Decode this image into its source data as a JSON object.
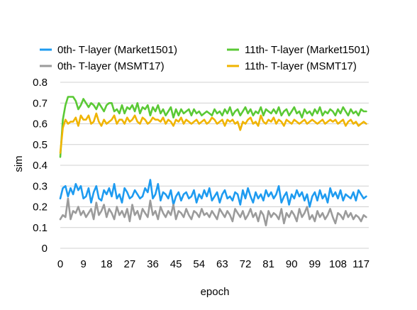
{
  "chart_data": {
    "type": "line",
    "title": "",
    "xlabel": "epoch",
    "ylabel": "sim",
    "ylim": [
      0,
      0.8
    ],
    "yticks": [
      "0",
      "0.1",
      "0.2",
      "0.3",
      "0.4",
      "0.5",
      "0.6",
      "0.7",
      "0.8"
    ],
    "xlim": [
      0,
      120
    ],
    "xticks": [
      "0",
      "9",
      "18",
      "27",
      "36",
      "45",
      "54",
      "63",
      "72",
      "81",
      "90",
      "99",
      "108",
      "117"
    ],
    "grid": "horizontal",
    "legend_position": "top",
    "x": [
      0,
      1,
      2,
      3,
      4,
      5,
      6,
      7,
      8,
      9,
      10,
      11,
      12,
      13,
      14,
      15,
      16,
      17,
      18,
      19,
      20,
      21,
      22,
      23,
      24,
      25,
      26,
      27,
      28,
      29,
      30,
      31,
      32,
      33,
      34,
      35,
      36,
      37,
      38,
      39,
      40,
      41,
      42,
      43,
      44,
      45,
      46,
      47,
      48,
      49,
      50,
      51,
      52,
      53,
      54,
      55,
      56,
      57,
      58,
      59,
      60,
      61,
      62,
      63,
      64,
      65,
      66,
      67,
      68,
      69,
      70,
      71,
      72,
      73,
      74,
      75,
      76,
      77,
      78,
      79,
      80,
      81,
      82,
      83,
      84,
      85,
      86,
      87,
      88,
      89,
      90,
      91,
      92,
      93,
      94,
      95,
      96,
      97,
      98,
      99,
      100,
      101,
      102,
      103,
      104,
      105,
      106,
      107,
      108,
      109,
      110,
      111,
      112,
      113,
      114,
      115,
      116,
      117,
      118,
      119
    ],
    "series": [
      {
        "name": "0th- T-layer (Market1501)",
        "color": "#1E9BF0",
        "values": [
          0.24,
          0.29,
          0.3,
          0.25,
          0.29,
          0.26,
          0.31,
          0.28,
          0.3,
          0.24,
          0.25,
          0.29,
          0.22,
          0.27,
          0.3,
          0.24,
          0.23,
          0.28,
          0.26,
          0.29,
          0.25,
          0.31,
          0.24,
          0.26,
          0.22,
          0.29,
          0.27,
          0.24,
          0.25,
          0.28,
          0.26,
          0.24,
          0.25,
          0.29,
          0.27,
          0.33,
          0.24,
          0.26,
          0.31,
          0.23,
          0.27,
          0.26,
          0.24,
          0.28,
          0.21,
          0.25,
          0.27,
          0.23,
          0.26,
          0.27,
          0.24,
          0.25,
          0.28,
          0.22,
          0.26,
          0.24,
          0.28,
          0.25,
          0.29,
          0.23,
          0.25,
          0.27,
          0.22,
          0.26,
          0.28,
          0.24,
          0.25,
          0.23,
          0.27,
          0.26,
          0.21,
          0.28,
          0.24,
          0.29,
          0.25,
          0.22,
          0.27,
          0.24,
          0.26,
          0.23,
          0.28,
          0.25,
          0.27,
          0.24,
          0.26,
          0.3,
          0.22,
          0.25,
          0.27,
          0.21,
          0.26,
          0.24,
          0.28,
          0.25,
          0.27,
          0.23,
          0.26,
          0.2,
          0.25,
          0.27,
          0.23,
          0.28,
          0.24,
          0.26,
          0.22,
          0.29,
          0.25,
          0.27,
          0.24,
          0.28,
          0.23,
          0.26,
          0.25,
          0.24,
          0.27,
          0.23,
          0.28,
          0.26,
          0.24,
          0.25
        ]
      },
      {
        "name": "11th- T-layer (Market1501)",
        "color": "#5AC935",
        "values": [
          0.44,
          0.62,
          0.69,
          0.73,
          0.73,
          0.73,
          0.71,
          0.67,
          0.69,
          0.72,
          0.7,
          0.68,
          0.7,
          0.69,
          0.67,
          0.7,
          0.68,
          0.66,
          0.69,
          0.7,
          0.7,
          0.66,
          0.67,
          0.65,
          0.69,
          0.65,
          0.68,
          0.67,
          0.69,
          0.66,
          0.7,
          0.65,
          0.68,
          0.67,
          0.69,
          0.64,
          0.68,
          0.66,
          0.69,
          0.65,
          0.67,
          0.64,
          0.66,
          0.68,
          0.63,
          0.67,
          0.64,
          0.67,
          0.65,
          0.66,
          0.67,
          0.64,
          0.67,
          0.65,
          0.66,
          0.64,
          0.65,
          0.66,
          0.65,
          0.64,
          0.67,
          0.65,
          0.66,
          0.64,
          0.67,
          0.65,
          0.68,
          0.64,
          0.66,
          0.67,
          0.64,
          0.66,
          0.68,
          0.65,
          0.67,
          0.64,
          0.66,
          0.65,
          0.68,
          0.64,
          0.67,
          0.66,
          0.65,
          0.67,
          0.65,
          0.68,
          0.64,
          0.66,
          0.67,
          0.64,
          0.66,
          0.68,
          0.65,
          0.66,
          0.63,
          0.67,
          0.65,
          0.66,
          0.64,
          0.67,
          0.65,
          0.68,
          0.64,
          0.66,
          0.65,
          0.67,
          0.66,
          0.64,
          0.67,
          0.65,
          0.68,
          0.66,
          0.64,
          0.67,
          0.65,
          0.66,
          0.64,
          0.67,
          0.66,
          0.66
        ]
      },
      {
        "name": "0th- T-layer (MSMT17)",
        "color": "#9B9B9B",
        "values": [
          0.14,
          0.16,
          0.15,
          0.24,
          0.14,
          0.18,
          0.17,
          0.2,
          0.16,
          0.18,
          0.15,
          0.17,
          0.19,
          0.14,
          0.22,
          0.16,
          0.18,
          0.21,
          0.15,
          0.19,
          0.17,
          0.14,
          0.2,
          0.16,
          0.18,
          0.15,
          0.19,
          0.13,
          0.21,
          0.16,
          0.18,
          0.14,
          0.19,
          0.17,
          0.15,
          0.23,
          0.16,
          0.18,
          0.14,
          0.2,
          0.17,
          0.15,
          0.18,
          0.16,
          0.21,
          0.14,
          0.18,
          0.17,
          0.15,
          0.19,
          0.16,
          0.14,
          0.18,
          0.17,
          0.15,
          0.19,
          0.16,
          0.17,
          0.15,
          0.18,
          0.16,
          0.14,
          0.19,
          0.17,
          0.15,
          0.18,
          0.16,
          0.13,
          0.19,
          0.17,
          0.15,
          0.18,
          0.14,
          0.16,
          0.19,
          0.15,
          0.17,
          0.13,
          0.18,
          0.16,
          0.11,
          0.18,
          0.15,
          0.17,
          0.16,
          0.14,
          0.19,
          0.12,
          0.17,
          0.15,
          0.18,
          0.16,
          0.13,
          0.19,
          0.15,
          0.17,
          0.2,
          0.14,
          0.16,
          0.13,
          0.18,
          0.15,
          0.17,
          0.14,
          0.16,
          0.19,
          0.15,
          0.12,
          0.17,
          0.16,
          0.14,
          0.18,
          0.15,
          0.17,
          0.14,
          0.16,
          0.15,
          0.13,
          0.16,
          0.15
        ]
      },
      {
        "name": "11th- T-layer (MSMT17)",
        "color": "#F0B400",
        "values": [
          0.46,
          0.58,
          0.62,
          0.6,
          0.61,
          0.61,
          0.63,
          0.59,
          0.64,
          0.62,
          0.62,
          0.64,
          0.6,
          0.61,
          0.65,
          0.61,
          0.59,
          0.62,
          0.6,
          0.61,
          0.62,
          0.64,
          0.6,
          0.62,
          0.62,
          0.6,
          0.63,
          0.61,
          0.62,
          0.64,
          0.61,
          0.6,
          0.63,
          0.62,
          0.6,
          0.61,
          0.63,
          0.62,
          0.62,
          0.61,
          0.63,
          0.6,
          0.62,
          0.61,
          0.59,
          0.62,
          0.61,
          0.63,
          0.6,
          0.62,
          0.61,
          0.6,
          0.61,
          0.62,
          0.6,
          0.61,
          0.62,
          0.6,
          0.61,
          0.63,
          0.62,
          0.6,
          0.61,
          0.62,
          0.59,
          0.62,
          0.61,
          0.62,
          0.6,
          0.61,
          0.57,
          0.61,
          0.6,
          0.62,
          0.63,
          0.6,
          0.61,
          0.59,
          0.64,
          0.61,
          0.6,
          0.62,
          0.61,
          0.63,
          0.6,
          0.62,
          0.61,
          0.59,
          0.62,
          0.61,
          0.6,
          0.62,
          0.61,
          0.6,
          0.61,
          0.62,
          0.6,
          0.61,
          0.62,
          0.61,
          0.6,
          0.61,
          0.62,
          0.6,
          0.61,
          0.62,
          0.61,
          0.62,
          0.6,
          0.61,
          0.62,
          0.59,
          0.61,
          0.62,
          0.6,
          0.61,
          0.59,
          0.6,
          0.61,
          0.6
        ]
      }
    ]
  }
}
